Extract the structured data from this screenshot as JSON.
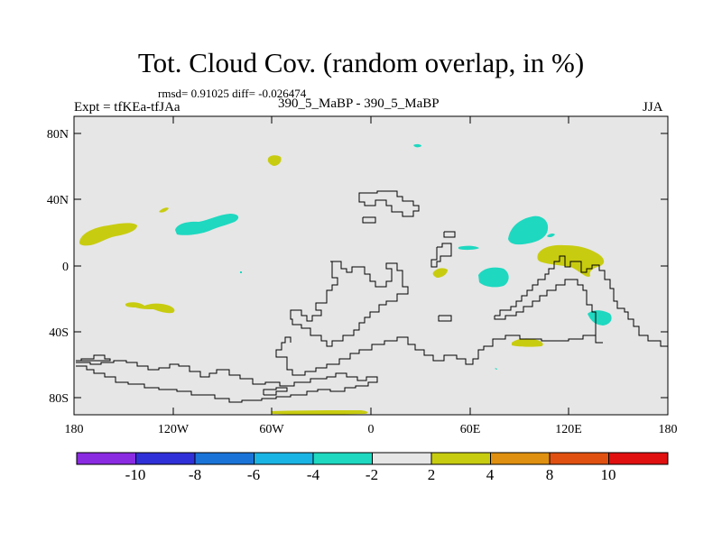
{
  "title": "Tot. Cloud Cov. (random overlap, in %)",
  "stats": "rmsd= 0.91025 diff= -0.026474",
  "experiment": "Expt = tfKEa-tfJAa",
  "cases": "390_5_MaBP - 390_5_MaBP",
  "season": "JJA",
  "lon_ticks": [
    "180",
    "120W",
    "60W",
    "0",
    "60E",
    "120E",
    "180"
  ],
  "lat_ticks": [
    "80N",
    "40N",
    "0",
    "40S",
    "80S"
  ],
  "colorbar": {
    "labels": [
      "-10",
      "-8",
      "-6",
      "-4",
      "-2",
      "2",
      "4",
      "8",
      "10"
    ],
    "colors": [
      "#8a2be2",
      "#3030d8",
      "#1a74d8",
      "#1ab4e4",
      "#1ed8c0",
      "#e6e6e6",
      "#c8cc10",
      "#e09010",
      "#e05010",
      "#e01010"
    ]
  },
  "chart_data": {
    "type": "heatmap",
    "title": "Tot. Cloud Cov. (random overlap, in %)",
    "xlim": [
      -180,
      180
    ],
    "ylim": [
      -90,
      90
    ],
    "levels": [
      -10,
      -8,
      -6,
      -4,
      -2,
      2,
      4,
      8,
      10
    ],
    "background_value_range": [
      -2,
      2
    ],
    "anomaly_regions": [
      {
        "lon": [
          -173,
          -145
        ],
        "lat": [
          12,
          26
        ],
        "range": "2 to 4"
      },
      {
        "lon": [
          -132,
          -127
        ],
        "lat": [
          32,
          35
        ],
        "range": "2 to 4"
      },
      {
        "lon": [
          -118,
          -95
        ],
        "lat": [
          20,
          28
        ],
        "range": "-4 to -2"
      },
      {
        "lon": [
          -97,
          -85
        ],
        "lat": [
          22,
          32
        ],
        "range": "-4 to -2"
      },
      {
        "lon": [
          -63,
          -55
        ],
        "lat": [
          60,
          67
        ],
        "range": "2 to 4"
      },
      {
        "lon": [
          27,
          32
        ],
        "lat": [
          74,
          75
        ],
        "range": "-4 to -2"
      },
      {
        "lon": [
          -152,
          -121
        ],
        "lat": [
          -30,
          -23
        ],
        "range": "2 to 4"
      },
      {
        "lon": [
          54,
          68
        ],
        "lat": [
          -13,
          -1
        ],
        "range": "-4 to -2"
      },
      {
        "lon": [
          38,
          46
        ],
        "lat": [
          -6,
          -2
        ],
        "range": "2 to 4"
      },
      {
        "lon": [
          53,
          66
        ],
        "lat": [
          8,
          10
        ],
        "range": "-4 to -2"
      },
      {
        "lon": [
          81,
          108
        ],
        "lat": [
          12,
          32
        ],
        "range": "-4 to -2"
      },
      {
        "lon": [
          104,
          136
        ],
        "lat": [
          2,
          14
        ],
        "range": "2 to 4"
      },
      {
        "lon": [
          130,
          144
        ],
        "lat": [
          -35,
          -26
        ],
        "range": "-4 to -2"
      },
      {
        "lon": [
          86,
          104
        ],
        "lat": [
          -48,
          -43
        ],
        "range": "2 to 4"
      },
      {
        "lon": [
          -60,
          5
        ],
        "lat": [
          -89,
          -86
        ],
        "range": "2 to 4"
      }
    ]
  }
}
